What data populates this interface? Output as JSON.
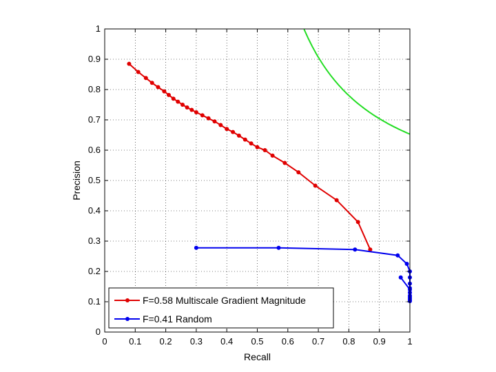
{
  "chart_data": {
    "type": "line",
    "title": "",
    "xlabel": "Recall",
    "ylabel": "Precision",
    "xlim": [
      0,
      1
    ],
    "ylim": [
      0,
      1
    ],
    "xticks": [
      "0",
      "0.1",
      "0.2",
      "0.3",
      "0.4",
      "0.5",
      "0.6",
      "0.7",
      "0.8",
      "0.9",
      "1"
    ],
    "yticks": [
      "0",
      "0.1",
      "0.2",
      "0.3",
      "0.4",
      "0.5",
      "0.6",
      "0.7",
      "0.8",
      "0.9",
      "1"
    ],
    "grid": true,
    "legend_position": "bottom-left",
    "series": [
      {
        "name": "F=0.58 Multiscale Gradient Magnitude",
        "color": "#e00000",
        "marker": "dot",
        "x": [
          0.08,
          0.11,
          0.135,
          0.155,
          0.175,
          0.195,
          0.21,
          0.225,
          0.24,
          0.255,
          0.27,
          0.285,
          0.3,
          0.32,
          0.34,
          0.36,
          0.38,
          0.4,
          0.42,
          0.44,
          0.46,
          0.48,
          0.5,
          0.525,
          0.55,
          0.59,
          0.635,
          0.69,
          0.76,
          0.83,
          0.87
        ],
        "y": [
          0.885,
          0.858,
          0.838,
          0.822,
          0.808,
          0.794,
          0.782,
          0.77,
          0.76,
          0.75,
          0.741,
          0.733,
          0.725,
          0.715,
          0.705,
          0.695,
          0.683,
          0.67,
          0.66,
          0.648,
          0.635,
          0.622,
          0.61,
          0.6,
          0.582,
          0.558,
          0.527,
          0.483,
          0.435,
          0.363,
          0.272
        ]
      },
      {
        "name": "F=0.41 Random",
        "color": "#0000ee",
        "marker": "dot",
        "x": [
          0.3,
          0.57,
          0.82,
          0.96,
          0.99,
          1.0,
          1.0,
          1.0,
          1.0,
          1.0,
          1.0,
          1.0,
          1.0,
          1.0,
          1.0,
          1.0,
          0.97
        ],
        "y": [
          0.278,
          0.278,
          0.272,
          0.253,
          0.225,
          0.2,
          0.18,
          0.16,
          0.145,
          0.13,
          0.12,
          0.11,
          0.105,
          0.102,
          0.115,
          0.14,
          0.18
        ]
      },
      {
        "name": "",
        "color": "#22dd22",
        "marker": "none",
        "iso_f": 0.79,
        "x_from": 0.6,
        "x_to": 1.0
      }
    ]
  }
}
